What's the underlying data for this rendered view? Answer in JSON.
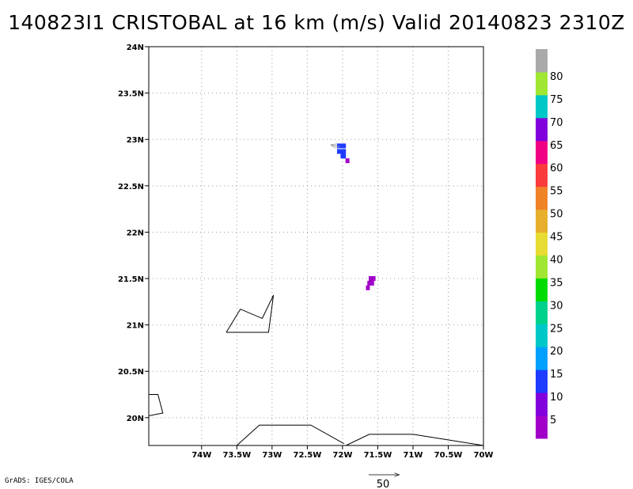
{
  "title": "140823I1  CRISTOBAL at 16 km (m/s) Valid 20140823 2310Z",
  "footer": "GrADS: IGES/COLA",
  "map": {
    "lon_range": [
      -74.75,
      -70.0
    ],
    "lat_range": [
      19.7,
      24.0
    ],
    "x_ticks": [
      {
        "value": -74.0,
        "label": "74W"
      },
      {
        "value": -73.5,
        "label": "73.5W"
      },
      {
        "value": -73.0,
        "label": "73W"
      },
      {
        "value": -72.5,
        "label": "72.5W"
      },
      {
        "value": -72.0,
        "label": "72W"
      },
      {
        "value": -71.5,
        "label": "71.5W"
      },
      {
        "value": -71.0,
        "label": "71W"
      },
      {
        "value": -70.5,
        "label": "70.5W"
      },
      {
        "value": -70.0,
        "label": "70W"
      }
    ],
    "y_ticks": [
      {
        "value": 24.0,
        "label": "24N"
      },
      {
        "value": 23.5,
        "label": "23.5N"
      },
      {
        "value": 23.0,
        "label": "23N"
      },
      {
        "value": 22.5,
        "label": "22.5N"
      },
      {
        "value": 22.0,
        "label": "22N"
      },
      {
        "value": 21.5,
        "label": "21.5N"
      },
      {
        "value": 21.0,
        "label": "21N"
      },
      {
        "value": 20.5,
        "label": "20.5N"
      },
      {
        "value": 20.0,
        "label": "20N"
      }
    ],
    "coastlines": [
      [
        [
          -73.65,
          20.92
        ],
        [
          -73.05,
          20.92
        ],
        [
          -72.98,
          21.32
        ],
        [
          -73.14,
          21.07
        ],
        [
          -73.45,
          21.17
        ],
        [
          -73.65,
          20.92
        ]
      ],
      [
        [
          -74.75,
          20.25
        ],
        [
          -74.62,
          20.25
        ],
        [
          -74.55,
          20.05
        ],
        [
          -74.75,
          20.02
        ]
      ],
      [
        [
          -73.5,
          19.7
        ],
        [
          -73.18,
          19.92
        ],
        [
          -72.75,
          19.92
        ],
        [
          -72.45,
          19.92
        ],
        [
          -71.98,
          19.72
        ]
      ],
      [
        [
          -71.95,
          19.7
        ],
        [
          -71.62,
          19.82
        ],
        [
          -71.0,
          19.82
        ],
        [
          -70.0,
          19.7
        ]
      ]
    ],
    "wind_cells": [
      {
        "lon": -72.05,
        "lat": 22.93,
        "color": "#1e3cff"
      },
      {
        "lon": -72.0,
        "lat": 22.93,
        "color": "#1e3cff"
      },
      {
        "lon": -71.98,
        "lat": 22.93,
        "color": "#1e3cff"
      },
      {
        "lon": -72.05,
        "lat": 22.87,
        "color": "#1e3cff"
      },
      {
        "lon": -72.0,
        "lat": 22.87,
        "color": "#1e3cff"
      },
      {
        "lon": -71.98,
        "lat": 22.87,
        "color": "#1e3cff"
      },
      {
        "lon": -72.0,
        "lat": 22.82,
        "color": "#1e3cff"
      },
      {
        "lon": -71.98,
        "lat": 22.82,
        "color": "#1e3cff"
      },
      {
        "lon": -71.93,
        "lat": 22.77,
        "color": "#a000c8"
      },
      {
        "lon": -71.6,
        "lat": 21.5,
        "color": "#a000c8"
      },
      {
        "lon": -71.56,
        "lat": 21.5,
        "color": "#a000c8"
      },
      {
        "lon": -71.62,
        "lat": 21.45,
        "color": "#a000c8"
      },
      {
        "lon": -71.58,
        "lat": 21.45,
        "color": "#a000c8"
      },
      {
        "lon": -71.64,
        "lat": 21.4,
        "color": "#a000c8"
      }
    ],
    "vectors": [
      {
        "lon": -72.04,
        "lat": 22.92,
        "u": -0.12,
        "v": 0.02,
        "color": "#999999"
      }
    ]
  },
  "colorbar": {
    "colors": [
      "#a000c8",
      "#8200dc",
      "#1e3cff",
      "#00a0ff",
      "#00c8c8",
      "#00d28c",
      "#00dc00",
      "#a0e632",
      "#e6dc32",
      "#e6af2d",
      "#f08228",
      "#fa3c3c",
      "#f00082",
      "#8200dc",
      "#00c8c8",
      "#a0e632",
      "#aaaaaa"
    ],
    "labels": [
      "5",
      "10",
      "15",
      "20",
      "25",
      "30",
      "35",
      "40",
      "45",
      "50",
      "55",
      "60",
      "65",
      "70",
      "75",
      "80"
    ]
  },
  "scale_vector": {
    "label": "50"
  }
}
